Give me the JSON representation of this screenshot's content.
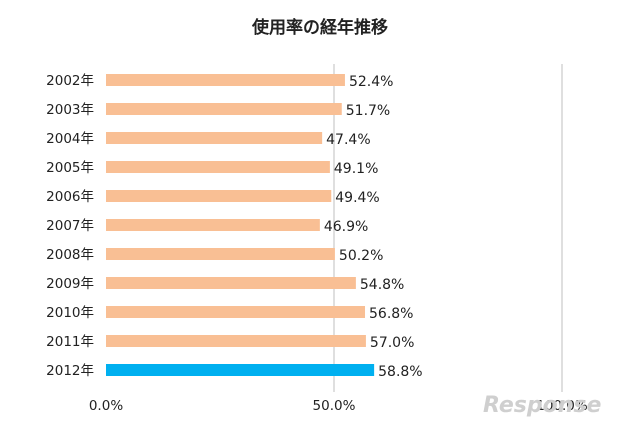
{
  "chart_data": {
    "type": "bar",
    "orientation": "horizontal",
    "title": "使用率の経年推移",
    "categories": [
      "2002年",
      "2003年",
      "2004年",
      "2005年",
      "2006年",
      "2007年",
      "2008年",
      "2009年",
      "2010年",
      "2011年",
      "2012年"
    ],
    "values": [
      52.4,
      51.7,
      47.4,
      49.1,
      49.4,
      46.9,
      50.2,
      54.8,
      56.8,
      57.0,
      58.8
    ],
    "value_labels": [
      "52.4%",
      "51.7%",
      "47.4%",
      "49.1%",
      "49.4%",
      "46.9%",
      "50.2%",
      "54.8%",
      "56.8%",
      "57.0%",
      "58.8%"
    ],
    "xlim": [
      0,
      100
    ],
    "x_ticks": [
      0,
      50,
      100
    ],
    "x_tick_labels": [
      "0.0%",
      "50.0%",
      "100.0%"
    ],
    "grid": "vertical lines at 50% and 100%",
    "colors": {
      "default": "#f9bf94",
      "highlight": "#00b0f0",
      "grid": "#bfbfbf"
    },
    "highlight_index": 10
  },
  "watermark": {
    "text": "Response"
  }
}
